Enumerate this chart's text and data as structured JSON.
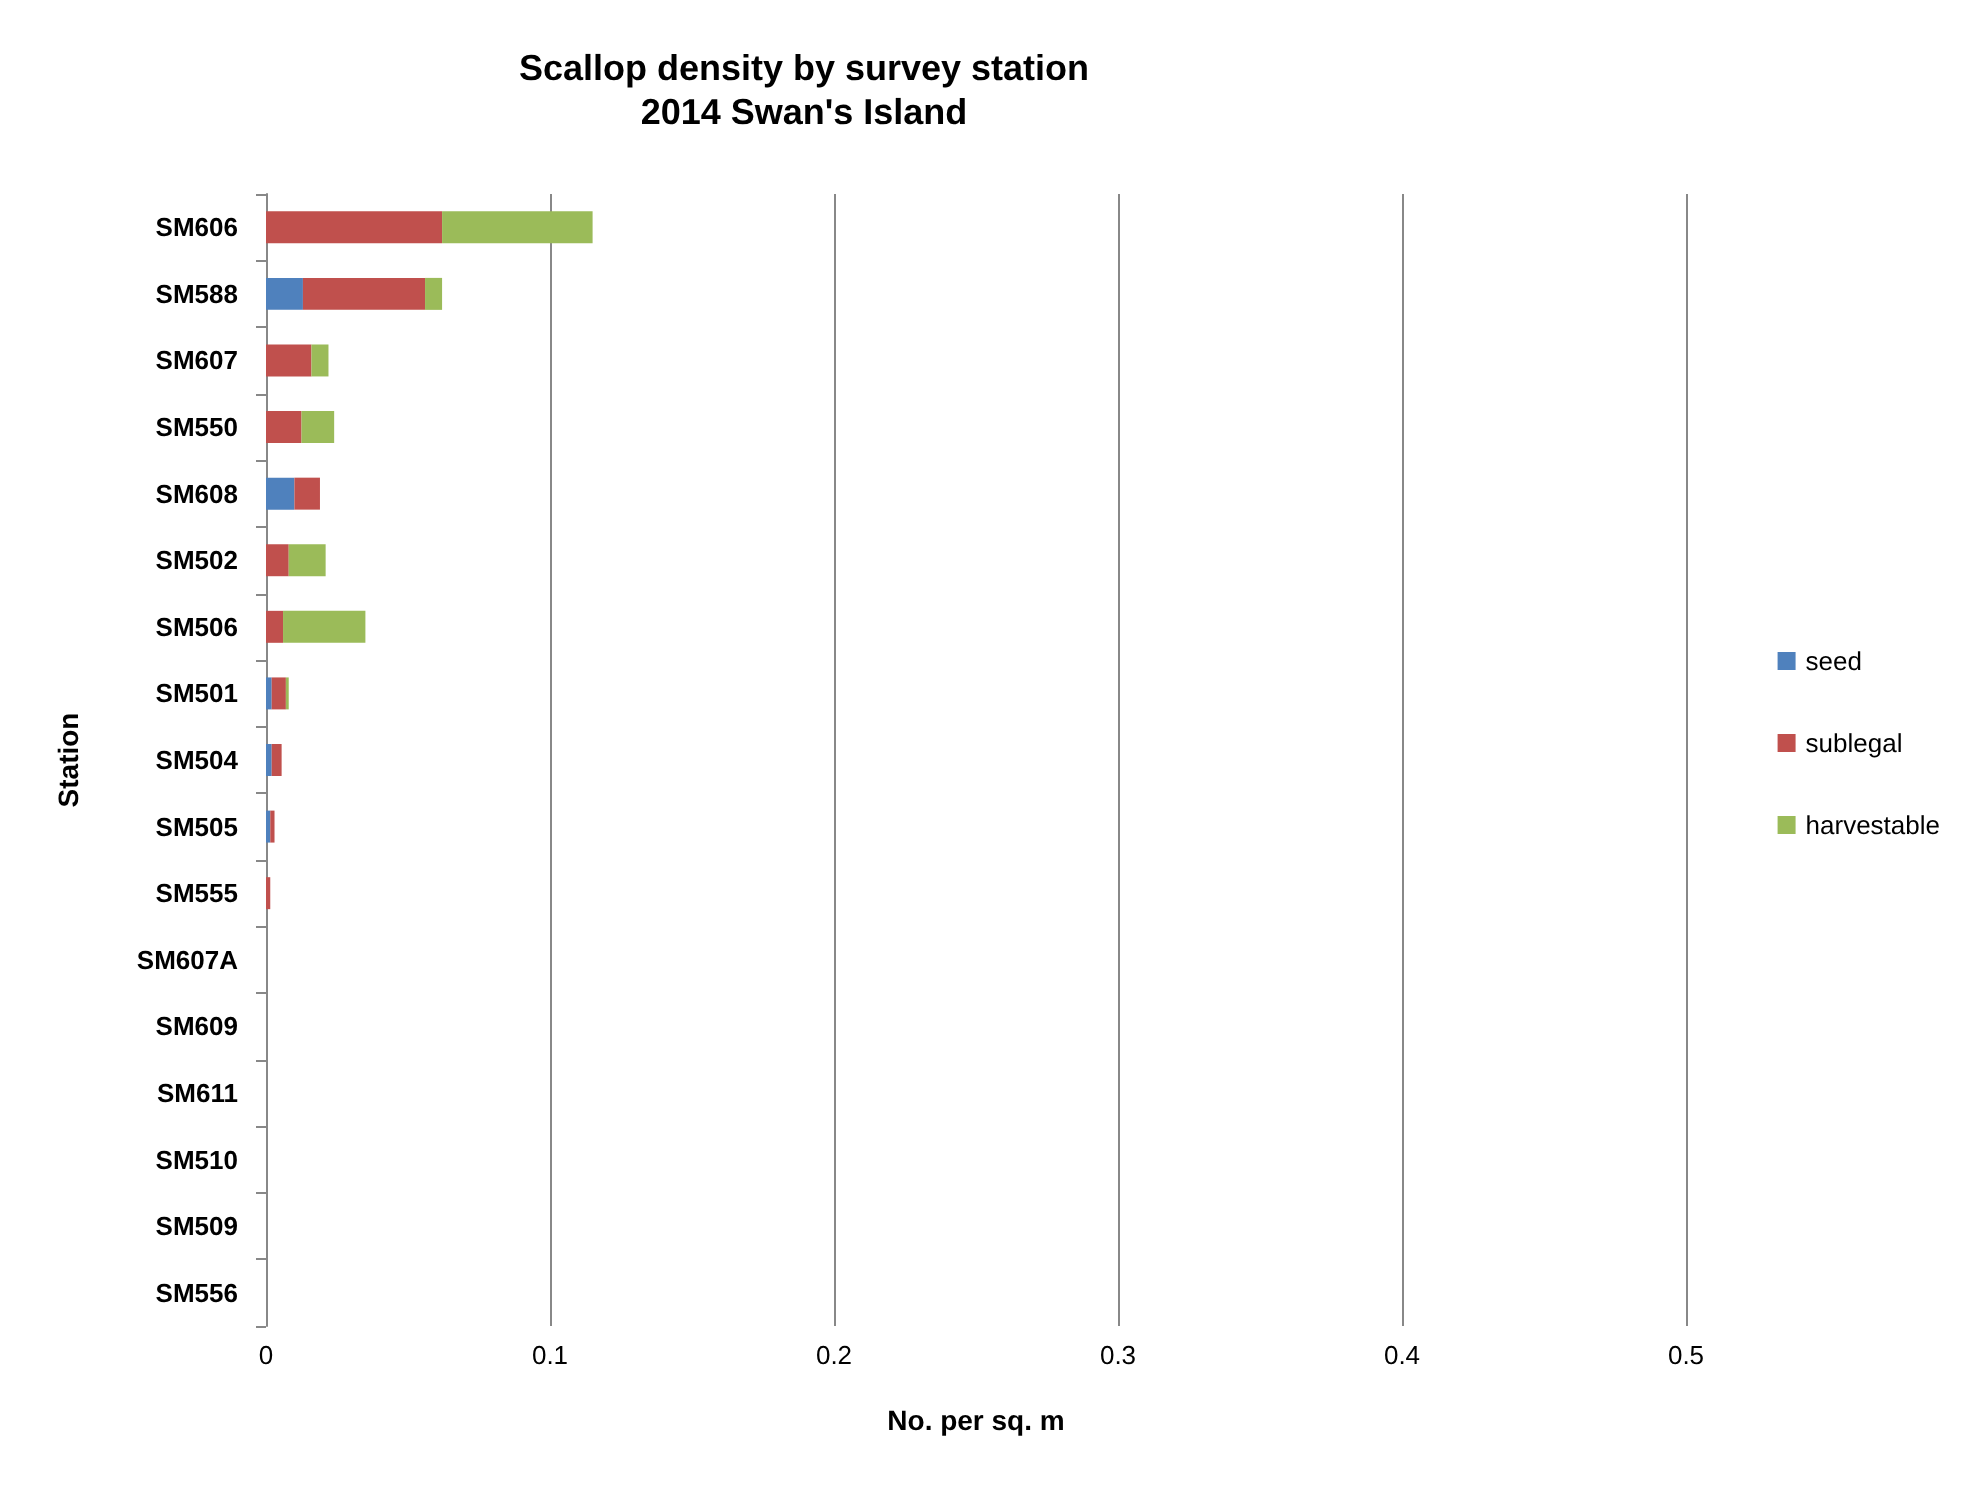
{
  "chart_data": {
    "type": "bar",
    "orientation": "horizontal",
    "stacked": true,
    "title": "Scallop density by survey station",
    "subtitle": "2014 Swan's Island",
    "xlabel": "No. per sq. m",
    "ylabel": "Station",
    "categories": [
      "SM606",
      "SM588",
      "SM607",
      "SM550",
      "SM608",
      "SM502",
      "SM506",
      "SM501",
      "SM504",
      "SM505",
      "SM555",
      "SM607A",
      "SM609",
      "SM611",
      "SM510",
      "SM509",
      "SM556"
    ],
    "series": [
      {
        "name": "seed",
        "color": "#4f81bd",
        "values": [
          0,
          0.013,
          0,
          0,
          0.01,
          0,
          0,
          0.002,
          0.002,
          0.0015,
          0,
          0,
          0,
          0,
          0,
          0,
          0
        ]
      },
      {
        "name": "sublegal",
        "color": "#c0504d",
        "values": [
          0.062,
          0.043,
          0.016,
          0.0125,
          0.009,
          0.008,
          0.006,
          0.005,
          0.0035,
          0.0015,
          0.0015,
          0,
          0,
          0,
          0,
          0,
          0
        ]
      },
      {
        "name": "harvestable",
        "color": "#9bbb59",
        "values": [
          0.053,
          0.006,
          0.006,
          0.0115,
          0,
          0.013,
          0.029,
          0.001,
          0,
          0,
          0,
          0,
          0,
          0,
          0,
          0,
          0
        ]
      }
    ],
    "xlim": [
      0,
      0.5
    ],
    "xticks": [
      0,
      0.1,
      0.2,
      0.3,
      0.4,
      0.5
    ],
    "grid": "x",
    "legend": "right"
  }
}
